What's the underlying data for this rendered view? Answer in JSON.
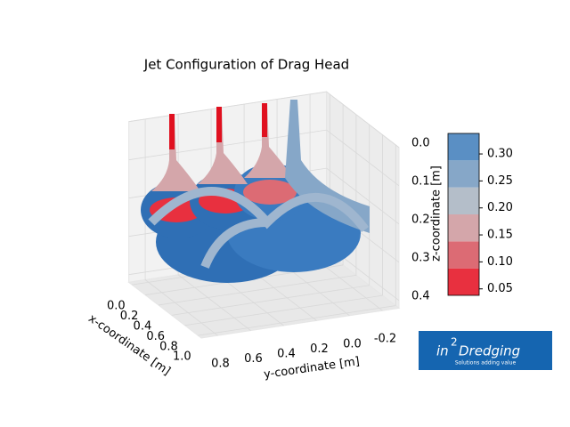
{
  "chart_data": {
    "type": "surface3d",
    "title": "Jet Configuration of Drag Head",
    "xlabel": "x-coordinate [m]",
    "ylabel": "y-coordinate [m]",
    "zlabel": "z-coordinate [m]",
    "xlim": [
      -0.05,
      1.05
    ],
    "ylim": [
      0.9,
      -0.3
    ],
    "zlim": [
      0.42,
      0
    ],
    "xticks": [
      {
        "value": 0,
        "label": "0.0"
      },
      0.2,
      0.4,
      0.6,
      0.8,
      {
        "value": 1,
        "label": "1.0"
      }
    ],
    "yticks": [
      0.8,
      0.6,
      0.4,
      0.2,
      {
        "value": 0,
        "label": "0.0"
      },
      -0.2
    ],
    "zticks": [
      {
        "value": 0,
        "label": "0.0"
      },
      0.1,
      0.2,
      0.3,
      0.4
    ],
    "colorbar": {
      "label": "z-coordinate [m]",
      "levels": [
        0.038,
        0.088,
        0.138,
        0.188,
        0.238,
        0.288,
        0.338
      ],
      "colors": [
        "#e8303f",
        "#dc6b74",
        "#d4a6aa",
        "#b4bec9",
        "#86a7c8",
        "#5a8fc4"
      ],
      "lim": [
        0.038,
        0.338
      ],
      "ticks": [
        0.05,
        {
          "value": 0.1,
          "label": "0.10"
        },
        0.15,
        {
          "value": 0.2,
          "label": "0.20"
        },
        0.25,
        {
          "value": 0.3,
          "label": "0.30"
        }
      ]
    }
  },
  "logo": {
    "prefix": "in",
    "mark": "2",
    "brand": "Dredging",
    "tagline": "Solutions adding value"
  }
}
